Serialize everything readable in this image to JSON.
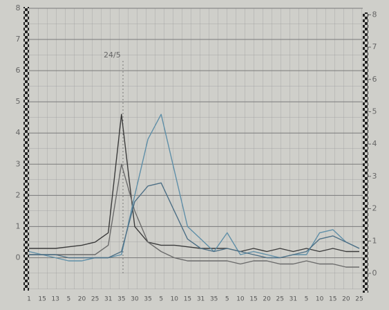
{
  "chart_data": {
    "type": "line",
    "annotation": "24/5",
    "categories": [
      "1",
      "15",
      "13",
      "5",
      "20",
      "25",
      "31",
      "35",
      "30",
      "35",
      "5",
      "10",
      "15",
      "31",
      "35",
      "5",
      "10",
      "15",
      "20",
      "25",
      "31",
      "5",
      "10",
      "15",
      "20",
      "25"
    ],
    "series": [
      {
        "color": "#3a3a3a",
        "values": [
          0.3,
          0.3,
          0.3,
          0.35,
          0.4,
          0.5,
          0.8,
          4.6,
          1.0,
          0.5,
          0.4,
          0.4,
          0.35,
          0.3,
          0.3,
          0.3,
          0.2,
          0.3,
          0.2,
          0.3,
          0.2,
          0.3,
          0.2,
          0.3,
          0.2,
          0.2
        ]
      },
      {
        "color": "#6a6a6a",
        "values": [
          0.1,
          0.1,
          0.1,
          0.1,
          0.1,
          0.1,
          0.4,
          3.0,
          1.5,
          0.5,
          0.2,
          0,
          -0.1,
          -0.1,
          -0.1,
          -0.1,
          -0.2,
          -0.1,
          -0.1,
          -0.2,
          -0.2,
          -0.1,
          -0.2,
          -0.2,
          -0.3,
          -0.3
        ]
      },
      {
        "color": "#5f8fa8",
        "values": [
          0.2,
          0.1,
          0,
          -0.1,
          -0.1,
          0,
          0,
          0.1,
          2.0,
          3.8,
          4.6,
          2.8,
          1.0,
          0.6,
          0.2,
          0.8,
          0.1,
          0.2,
          0.1,
          0,
          0.1,
          0.1,
          0.8,
          0.9,
          0.5,
          0.3
        ]
      },
      {
        "color": "#4d6f85",
        "values": [
          0.1,
          0.1,
          0.1,
          0,
          0,
          0,
          0,
          0.2,
          1.8,
          2.3,
          2.4,
          1.5,
          0.6,
          0.3,
          0.2,
          0.3,
          0.2,
          0.1,
          0,
          0,
          0.1,
          0.2,
          0.6,
          0.7,
          0.5,
          0.3
        ]
      }
    ],
    "ylim": [
      -0.5,
      8
    ],
    "yticks": [
      0,
      1,
      2,
      3,
      4,
      5,
      6,
      7,
      8
    ],
    "y2lim": [
      0,
      8.2
    ],
    "y2ticks": [
      0,
      1,
      2,
      3,
      4,
      5,
      6,
      7,
      8
    ],
    "grid": true
  }
}
